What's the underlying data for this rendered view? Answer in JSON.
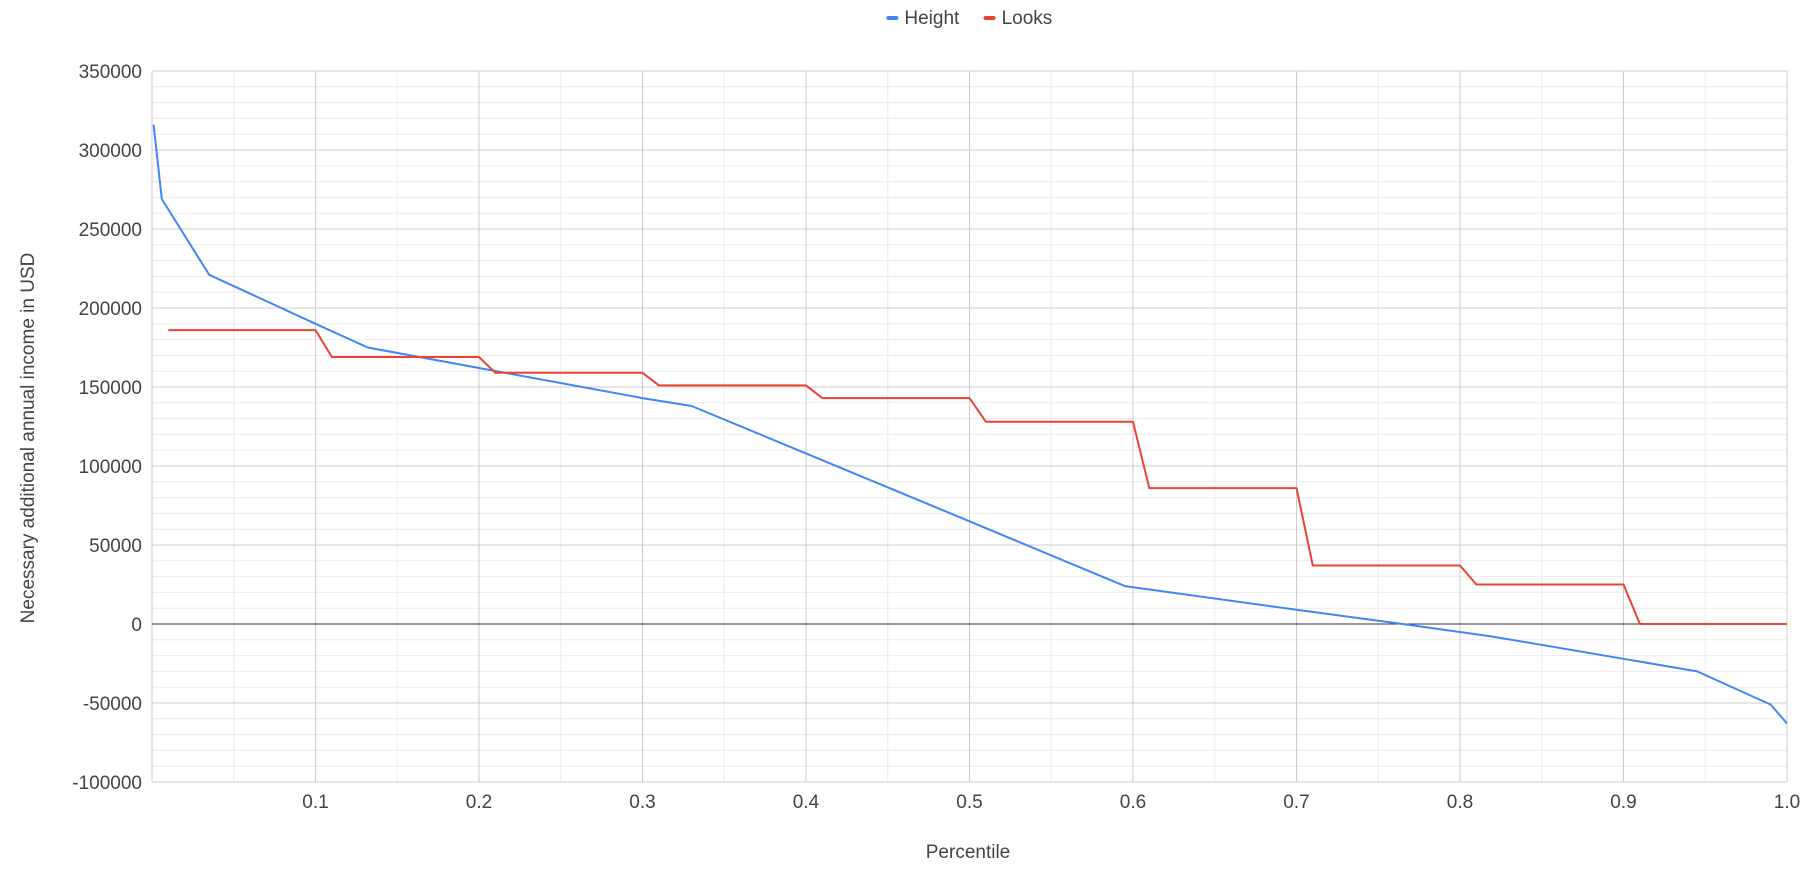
{
  "chart_data": {
    "type": "line",
    "title": "",
    "xlabel": "Percentile",
    "ylabel": "Necessary additional annual income in USD",
    "xlim": [
      0,
      1.0
    ],
    "ylim": [
      -100000,
      350000
    ],
    "x_ticks": [
      0.1,
      0.2,
      0.3,
      0.4,
      0.5,
      0.6,
      0.7,
      0.8,
      0.9,
      1.0
    ],
    "x_tick_labels": [
      "0.1",
      "0.2",
      "0.3",
      "0.4",
      "0.5",
      "0.6",
      "0.7",
      "0.8",
      "0.9",
      "1.0"
    ],
    "y_ticks": [
      -100000,
      -50000,
      0,
      50000,
      100000,
      150000,
      200000,
      250000,
      300000,
      350000
    ],
    "y_tick_labels": [
      "-100000",
      "-50000",
      "0",
      "50000",
      "100000",
      "150000",
      "200000",
      "250000",
      "300000",
      "350000"
    ],
    "x_minor_step": 0.05,
    "y_minor_step": 10000,
    "grid": true,
    "legend_position": "top",
    "series": [
      {
        "name": "Height",
        "color": "#4285f4",
        "points": [
          [
            0.001,
            316000
          ],
          [
            0.006,
            269000
          ],
          [
            0.035,
            221000
          ],
          [
            0.1,
            190000
          ],
          [
            0.132,
            175000
          ],
          [
            0.2,
            162000
          ],
          [
            0.3,
            143000
          ],
          [
            0.33,
            138000
          ],
          [
            0.4,
            108000
          ],
          [
            0.5,
            65000
          ],
          [
            0.595,
            24000
          ],
          [
            0.7,
            9000
          ],
          [
            0.765,
            0
          ],
          [
            0.82,
            -8000
          ],
          [
            0.9,
            -22000
          ],
          [
            0.945,
            -30000
          ],
          [
            0.99,
            -51000
          ],
          [
            1.0,
            -63000
          ]
        ]
      },
      {
        "name": "Looks",
        "color": "#ea4335",
        "points": [
          [
            0.01,
            186000
          ],
          [
            0.1,
            186000
          ],
          [
            0.11,
            169000
          ],
          [
            0.2,
            169000
          ],
          [
            0.21,
            159000
          ],
          [
            0.3,
            159000
          ],
          [
            0.31,
            151000
          ],
          [
            0.4,
            151000
          ],
          [
            0.41,
            143000
          ],
          [
            0.5,
            143000
          ],
          [
            0.51,
            128000
          ],
          [
            0.6,
            128000
          ],
          [
            0.61,
            86000
          ],
          [
            0.7,
            86000
          ],
          [
            0.71,
            37000
          ],
          [
            0.8,
            37000
          ],
          [
            0.81,
            25000
          ],
          [
            0.9,
            25000
          ],
          [
            0.91,
            0
          ],
          [
            1.0,
            0
          ]
        ]
      }
    ]
  }
}
